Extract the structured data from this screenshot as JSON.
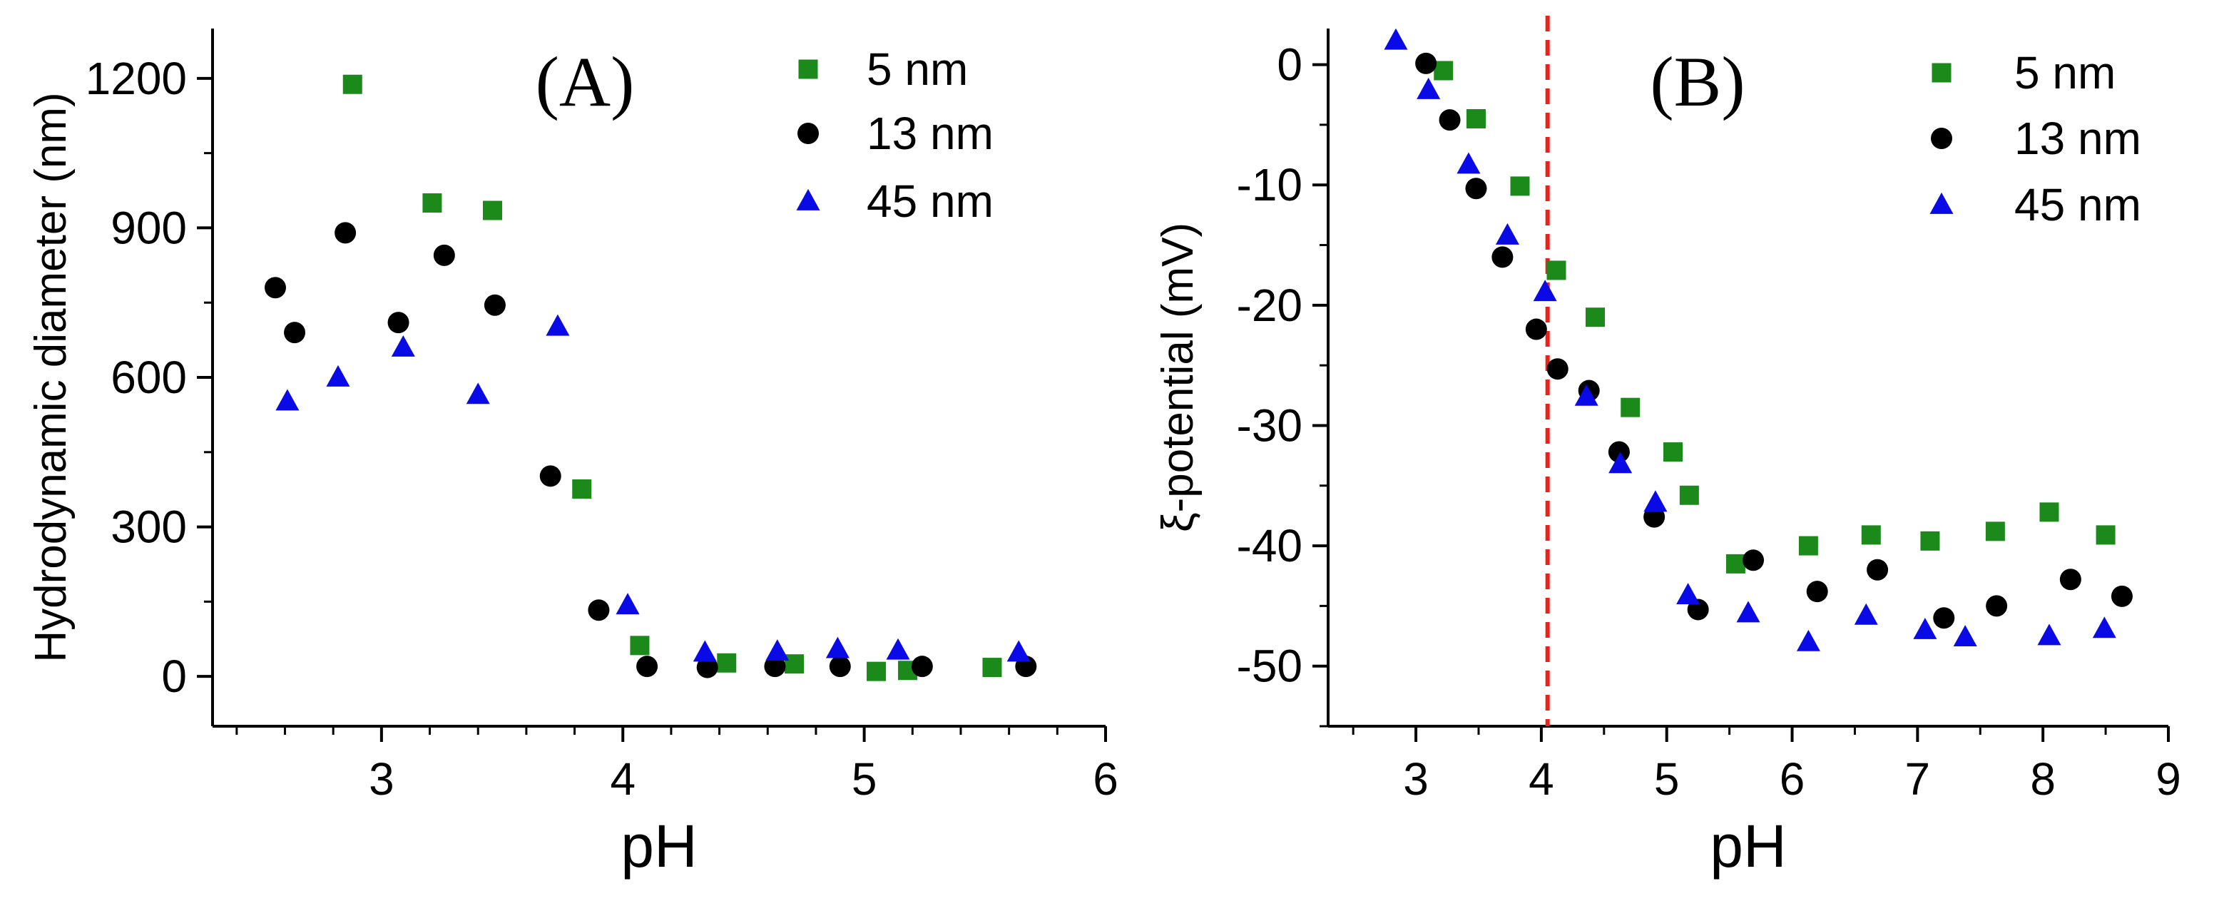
{
  "chart_data": [
    {
      "type": "scatter",
      "panel_label": "(A)",
      "xlabel": "pH",
      "ylabel": "Hydrodynamic diameter (nm)",
      "xlim": [
        2.3,
        6.0
      ],
      "ylim": [
        -100,
        1300
      ],
      "xticks": [
        3,
        4,
        5,
        6
      ],
      "yticks": [
        0,
        300,
        600,
        900,
        1200
      ],
      "legend_position": "top-right",
      "series": [
        {
          "name": "5 nm",
          "marker": "square",
          "color": "#1b8a1b",
          "points": [
            [
              2.88,
              1188
            ],
            [
              3.21,
              950
            ],
            [
              3.46,
              935
            ],
            [
              3.83,
              376
            ],
            [
              4.07,
              62
            ],
            [
              4.43,
              27
            ],
            [
              4.71,
              25
            ],
            [
              5.05,
              10
            ],
            [
              5.18,
              12
            ],
            [
              5.53,
              18
            ]
          ]
        },
        {
          "name": "13 nm",
          "marker": "circle",
          "color": "#000000",
          "points": [
            [
              2.56,
              780
            ],
            [
              2.64,
              690
            ],
            [
              2.85,
              890
            ],
            [
              3.07,
              710
            ],
            [
              3.26,
              845
            ],
            [
              3.47,
              745
            ],
            [
              3.7,
              402
            ],
            [
              3.9,
              133
            ],
            [
              4.1,
              20
            ],
            [
              4.35,
              18
            ],
            [
              4.63,
              20
            ],
            [
              4.9,
              20
            ],
            [
              5.24,
              20
            ],
            [
              5.67,
              20
            ]
          ]
        },
        {
          "name": "45 nm",
          "marker": "triangle",
          "color": "#0a0ae6",
          "points": [
            [
              2.61,
              552
            ],
            [
              2.82,
              600
            ],
            [
              3.09,
              660
            ],
            [
              3.4,
              565
            ],
            [
              3.73,
              702
            ],
            [
              4.02,
              143
            ],
            [
              4.34,
              48
            ],
            [
              4.64,
              50
            ],
            [
              4.89,
              55
            ],
            [
              5.14,
              52
            ],
            [
              5.64,
              48
            ]
          ]
        }
      ]
    },
    {
      "type": "scatter",
      "panel_label": "(B)",
      "xlabel": "pH",
      "ylabel": "ξ-potential (mV)",
      "xlim": [
        2.3,
        9.0
      ],
      "ylim": [
        -55,
        3
      ],
      "xticks": [
        3,
        4,
        5,
        6,
        7,
        8,
        9
      ],
      "yticks": [
        0,
        -10,
        -20,
        -30,
        -40,
        -50
      ],
      "reference_line": {
        "x": 4.05,
        "color": "#e8231c",
        "style": "dashed"
      },
      "legend_position": "top-right",
      "series": [
        {
          "name": "5 nm",
          "marker": "square",
          "color": "#1b8a1b",
          "points": [
            [
              3.22,
              -0.5
            ],
            [
              3.48,
              -4.5
            ],
            [
              3.83,
              -10.1
            ],
            [
              4.12,
              -17.1
            ],
            [
              4.43,
              -21.0
            ],
            [
              4.71,
              -28.5
            ],
            [
              5.05,
              -32.2
            ],
            [
              5.18,
              -35.8
            ],
            [
              5.55,
              -41.5
            ],
            [
              6.13,
              -40.0
            ],
            [
              6.63,
              -39.1
            ],
            [
              7.1,
              -39.6
            ],
            [
              7.62,
              -38.8
            ],
            [
              8.05,
              -37.2
            ],
            [
              8.5,
              -39.1
            ]
          ]
        },
        {
          "name": "13 nm",
          "marker": "circle",
          "color": "#000000",
          "points": [
            [
              3.08,
              0.1
            ],
            [
              3.27,
              -4.6
            ],
            [
              3.48,
              -10.3
            ],
            [
              3.69,
              -16.0
            ],
            [
              3.96,
              -22.0
            ],
            [
              4.13,
              -25.3
            ],
            [
              4.38,
              -27.1
            ],
            [
              4.62,
              -32.2
            ],
            [
              4.9,
              -37.6
            ],
            [
              5.25,
              -45.3
            ],
            [
              5.69,
              -41.2
            ],
            [
              6.2,
              -43.8
            ],
            [
              6.68,
              -42.0
            ],
            [
              7.21,
              -46.0
            ],
            [
              7.63,
              -45.0
            ],
            [
              8.22,
              -42.8
            ],
            [
              8.63,
              -44.2
            ]
          ]
        },
        {
          "name": "45 nm",
          "marker": "triangle",
          "color": "#0a0ae6",
          "points": [
            [
              2.84,
              2.0
            ],
            [
              3.1,
              -2.1
            ],
            [
              3.42,
              -8.3
            ],
            [
              3.73,
              -14.2
            ],
            [
              4.03,
              -18.9
            ],
            [
              4.36,
              -27.6
            ],
            [
              4.63,
              -33.2
            ],
            [
              4.91,
              -36.4
            ],
            [
              5.17,
              -44.1
            ],
            [
              5.65,
              -45.6
            ],
            [
              6.13,
              -48.0
            ],
            [
              6.59,
              -45.8
            ],
            [
              7.06,
              -47.0
            ],
            [
              7.38,
              -47.6
            ],
            [
              8.05,
              -47.5
            ],
            [
              8.49,
              -46.9
            ]
          ]
        }
      ]
    }
  ]
}
